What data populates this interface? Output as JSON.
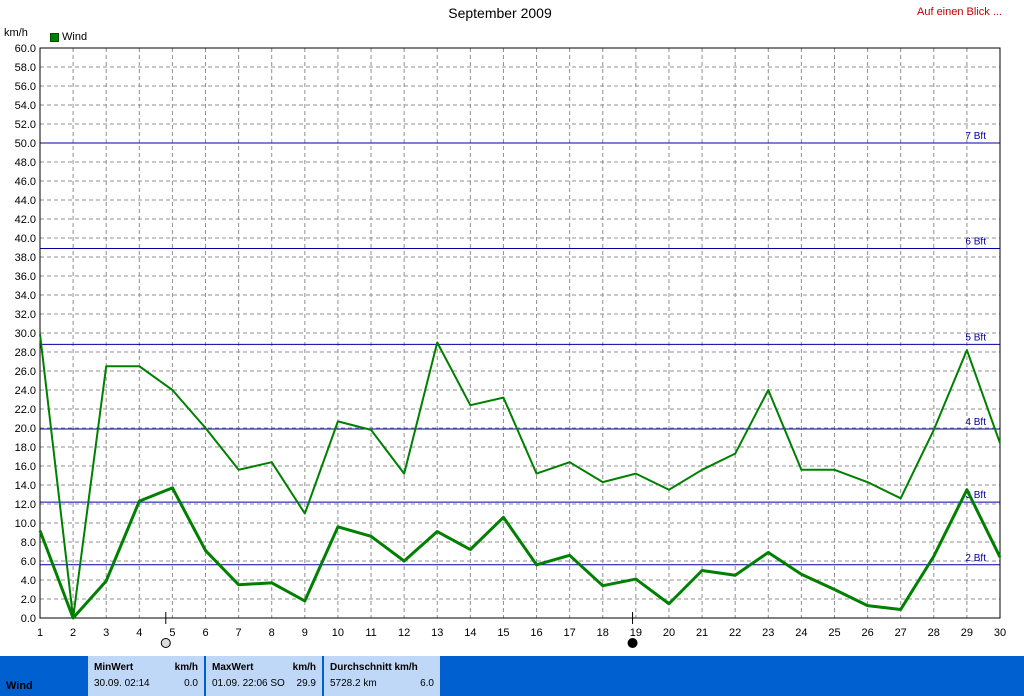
{
  "header": {
    "title": "September 2009",
    "link": "Auf einen Blick ...",
    "unit_label": "km/h"
  },
  "legend": {
    "label": "Wind",
    "color": "#008000"
  },
  "chart_data": {
    "type": "line",
    "title": "September 2009",
    "ylabel": "km/h",
    "xlabel": "",
    "ylim": [
      0,
      60
    ],
    "xlim": [
      1,
      30
    ],
    "grid": true,
    "legend_position": "top-left",
    "x": [
      1,
      2,
      3,
      4,
      5,
      6,
      7,
      8,
      9,
      10,
      11,
      12,
      13,
      14,
      15,
      16,
      17,
      18,
      19,
      20,
      21,
      22,
      23,
      24,
      25,
      26,
      27,
      28,
      29,
      30
    ],
    "series": [
      {
        "name": "Wind",
        "role": "average",
        "color": "#008000",
        "values": [
          9.2,
          0.0,
          3.9,
          12.3,
          13.7,
          7.1,
          3.5,
          3.7,
          1.8,
          9.6,
          8.6,
          6.0,
          9.1,
          7.2,
          10.6,
          5.6,
          6.6,
          3.4,
          4.1,
          1.5,
          5.0,
          4.5,
          6.9,
          4.6,
          3.0,
          1.3,
          0.9,
          6.5,
          13.5,
          6.4
        ]
      },
      {
        "name": "",
        "role": "max",
        "color": "#008000",
        "values": [
          29.9,
          0.0,
          26.5,
          26.5,
          24.0,
          20.0,
          15.6,
          16.4,
          11.0,
          20.7,
          19.8,
          15.2,
          29.0,
          22.4,
          23.2,
          15.2,
          16.4,
          14.3,
          15.2,
          13.5,
          15.6,
          17.3,
          24.0,
          15.6,
          15.6,
          14.3,
          12.6,
          19.8,
          28.2,
          18.4
        ]
      }
    ],
    "reference_lines": [
      {
        "label": "2 Bft",
        "value": 5.6,
        "color": "#0000a0"
      },
      {
        "label": "3 Bft",
        "value": 12.2,
        "color": "#0000a0"
      },
      {
        "label": "4 Bft",
        "value": 19.9,
        "color": "#0000a0"
      },
      {
        "label": "5 Bft",
        "value": 28.8,
        "color": "#0000a0"
      },
      {
        "label": "6 Bft",
        "value": 38.9,
        "color": "#0000a0"
      },
      {
        "label": "7 Bft",
        "value": 50.0,
        "color": "#0000a0"
      }
    ],
    "y_ticks": [
      "0.0",
      "2.0",
      "4.0",
      "6.0",
      "8.0",
      "10.0",
      "12.0",
      "14.0",
      "16.0",
      "18.0",
      "20.0",
      "22.0",
      "24.0",
      "26.0",
      "28.0",
      "30.0",
      "32.0",
      "34.0",
      "36.0",
      "38.0",
      "40.0",
      "42.0",
      "44.0",
      "46.0",
      "48.0",
      "50.0",
      "52.0",
      "54.0",
      "56.0",
      "58.0",
      "60.0"
    ],
    "x_ticks": [
      "1",
      "2",
      "3",
      "4",
      "5",
      "6",
      "7",
      "8",
      "9",
      "10",
      "11",
      "12",
      "13",
      "14",
      "15",
      "16",
      "17",
      "18",
      "19",
      "20",
      "21",
      "22",
      "23",
      "24",
      "25",
      "26",
      "27",
      "28",
      "29",
      "30"
    ],
    "moon_phases": [
      {
        "day": 4.8,
        "phase": "full-moon-icon"
      },
      {
        "day": 18.9,
        "phase": "new-moon-icon"
      }
    ]
  },
  "footer": {
    "name": "Wind",
    "min": {
      "header": "MinWert",
      "unit": "km/h",
      "date": "30.09.  02:14",
      "value": "0.0"
    },
    "max": {
      "header": "MaxWert",
      "unit": "km/h",
      "date": "01.09.  22:06 SO",
      "value": "29.9"
    },
    "avg": {
      "header": "Durchschnitt km/h",
      "distance": "5728.2 km",
      "value": "6.0"
    }
  }
}
